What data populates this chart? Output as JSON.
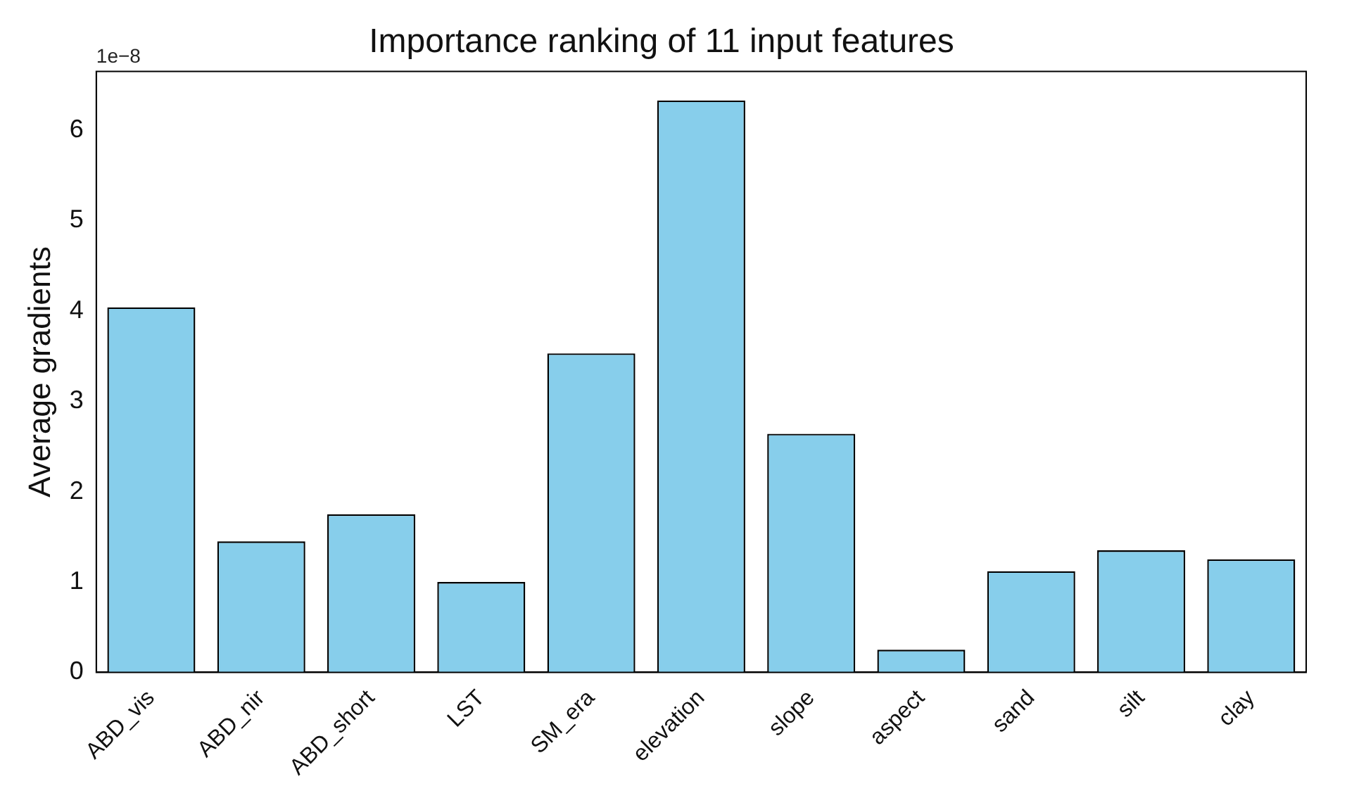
{
  "chart_data": {
    "type": "bar",
    "title": "Importance ranking of 11 input features",
    "ylabel": "Average gradients",
    "categories": [
      "ABD_vis",
      "ABD_nir",
      "ABD_short",
      "LST",
      "SM_era",
      "elevation",
      "slope",
      "aspect",
      "sand",
      "silt",
      "clay"
    ],
    "values": [
      4.04,
      1.45,
      1.75,
      1.0,
      3.53,
      6.33,
      2.64,
      0.25,
      1.12,
      1.35,
      1.25
    ],
    "color": "#87ceeb",
    "ylim": [
      0,
      6.65
    ],
    "yticks": [
      0,
      1,
      2,
      3,
      4,
      5,
      6
    ],
    "grid": false,
    "legend": false,
    "annotations": [
      "1e−8"
    ]
  }
}
